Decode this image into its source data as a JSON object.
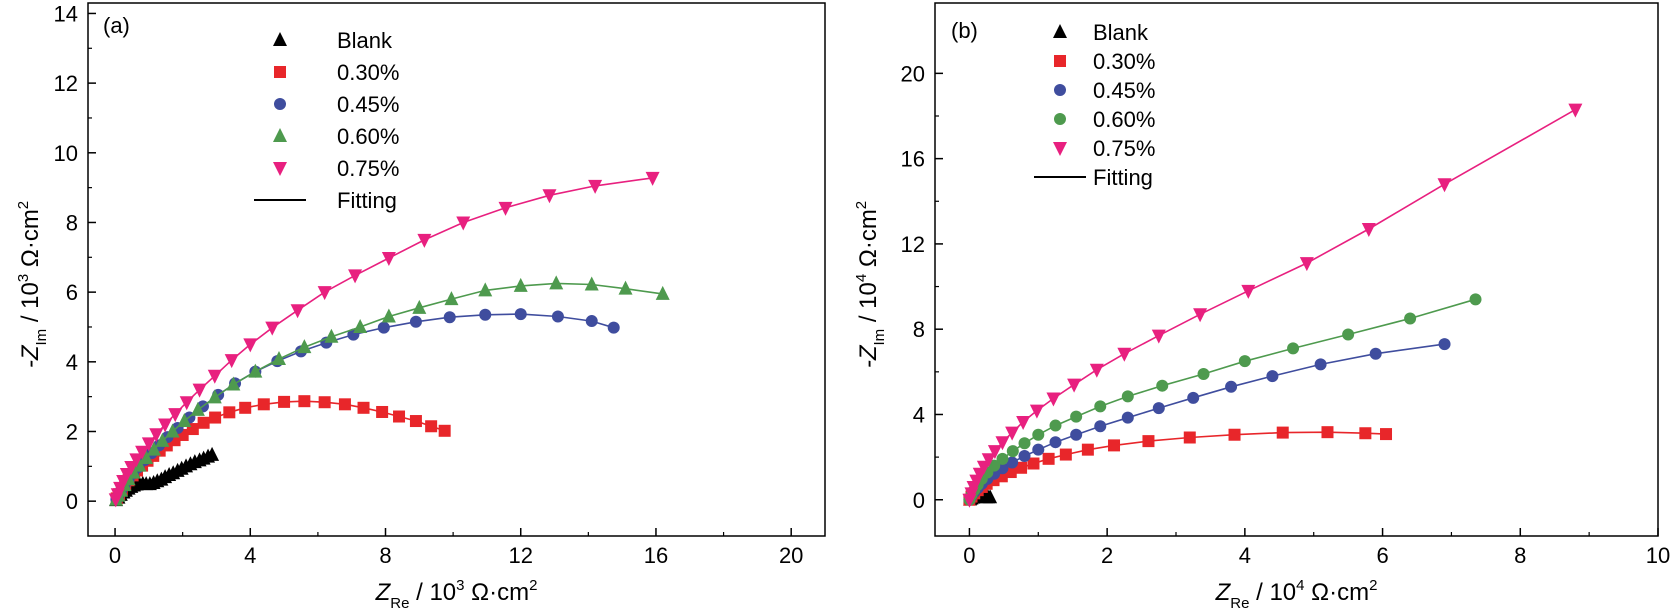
{
  "chart_data": [
    {
      "type": "scatter",
      "panel_label": "(a)",
      "xlabel": {
        "symbol": "Z",
        "subscript": "Re",
        "unit_prefix": " / 10",
        "exponent": "3",
        "unit": " Ω·cm",
        "unit_exponent": "2"
      },
      "ylabel": {
        "symbol": "-Z",
        "subscript": "Im",
        "unit_prefix": " / 10",
        "exponent": "3",
        "unit": " Ω·cm",
        "unit_exponent": "2"
      },
      "xlim": [
        -0.8,
        21
      ],
      "ylim": [
        -1.0,
        14.3
      ],
      "xticks": [
        0,
        4,
        8,
        12,
        16,
        20
      ],
      "yticks": [
        0,
        2,
        4,
        6,
        8,
        10,
        12,
        14
      ],
      "xtick_labels": [
        "0",
        "4",
        "8",
        "12",
        "16",
        "20"
      ],
      "ytick_labels": [
        "0",
        "2",
        "4",
        "6",
        "8",
        "10",
        "12",
        "14"
      ],
      "legend_position": "top-center",
      "legend_fitting_label": "Fitting",
      "series": [
        {
          "name": "Blank",
          "marker": "triangle-up",
          "color": "#000000",
          "x": [
            0.03,
            0.1,
            0.17,
            0.25,
            0.32,
            0.4,
            0.48,
            0.56,
            0.64,
            0.72,
            0.82,
            0.92,
            1.03,
            1.14,
            1.25,
            1.37,
            1.48,
            1.6,
            1.72,
            1.85,
            1.97,
            2.1,
            2.23,
            2.36,
            2.5,
            2.62,
            2.75,
            2.87
          ],
          "y": [
            0.03,
            0.1,
            0.18,
            0.25,
            0.3,
            0.36,
            0.41,
            0.45,
            0.48,
            0.5,
            0.5,
            0.49,
            0.49,
            0.52,
            0.57,
            0.62,
            0.69,
            0.75,
            0.8,
            0.87,
            0.93,
            1.0,
            1.06,
            1.12,
            1.17,
            1.22,
            1.28,
            1.33
          ]
        },
        {
          "name": "0.30%",
          "marker": "square",
          "color": "#e8262a",
          "x": [
            0.05,
            0.12,
            0.2,
            0.3,
            0.4,
            0.52,
            0.65,
            0.8,
            0.96,
            1.13,
            1.32,
            1.53,
            1.76,
            2.0,
            2.3,
            2.62,
            2.96,
            3.38,
            3.85,
            4.4,
            5.0,
            5.6,
            6.2,
            6.8,
            7.35,
            7.9,
            8.4,
            8.9,
            9.35,
            9.75
          ],
          "y": [
            0.08,
            0.2,
            0.33,
            0.47,
            0.6,
            0.74,
            0.88,
            1.02,
            1.16,
            1.3,
            1.45,
            1.6,
            1.75,
            1.9,
            2.07,
            2.25,
            2.4,
            2.55,
            2.68,
            2.78,
            2.85,
            2.87,
            2.84,
            2.78,
            2.68,
            2.56,
            2.43,
            2.3,
            2.15,
            2.02
          ]
        },
        {
          "name": "0.45%",
          "marker": "circle",
          "color": "#3f4d9e",
          "x": [
            0.04,
            0.1,
            0.18,
            0.28,
            0.4,
            0.54,
            0.7,
            0.88,
            1.08,
            1.3,
            1.55,
            1.85,
            2.2,
            2.6,
            3.05,
            3.55,
            4.15,
            4.8,
            5.5,
            6.25,
            7.05,
            7.95,
            8.9,
            9.9,
            10.95,
            12.0,
            13.1,
            14.1,
            14.75
          ],
          "y": [
            0.05,
            0.16,
            0.3,
            0.45,
            0.62,
            0.8,
            0.98,
            1.18,
            1.38,
            1.6,
            1.84,
            2.1,
            2.4,
            2.72,
            3.05,
            3.38,
            3.72,
            4.02,
            4.3,
            4.55,
            4.78,
            4.98,
            5.15,
            5.28,
            5.35,
            5.37,
            5.3,
            5.17,
            4.98
          ]
        },
        {
          "name": "0.60%",
          "marker": "triangle-up",
          "color": "#4e9a4e",
          "x": [
            0.03,
            0.1,
            0.18,
            0.28,
            0.4,
            0.55,
            0.72,
            0.92,
            1.15,
            1.4,
            1.7,
            2.05,
            2.45,
            2.95,
            3.5,
            4.15,
            4.85,
            5.6,
            6.4,
            7.25,
            8.1,
            9.0,
            9.95,
            10.95,
            12.0,
            13.05,
            14.1,
            15.1,
            16.2
          ],
          "y": [
            0.04,
            0.16,
            0.3,
            0.46,
            0.63,
            0.82,
            1.02,
            1.24,
            1.48,
            1.73,
            2.0,
            2.3,
            2.62,
            2.98,
            3.35,
            3.72,
            4.08,
            4.42,
            4.72,
            5.0,
            5.3,
            5.55,
            5.8,
            6.05,
            6.18,
            6.25,
            6.22,
            6.1,
            5.95
          ]
        },
        {
          "name": "0.75%",
          "marker": "triangle-down",
          "color": "#e8207f",
          "x": [
            0.02,
            0.08,
            0.15,
            0.24,
            0.35,
            0.48,
            0.63,
            0.8,
            1.0,
            1.22,
            1.48,
            1.78,
            2.12,
            2.5,
            2.95,
            3.45,
            4.0,
            4.65,
            5.4,
            6.2,
            7.1,
            8.1,
            9.15,
            10.3,
            11.55,
            12.85,
            14.2,
            15.9
          ],
          "y": [
            0.05,
            0.2,
            0.38,
            0.58,
            0.78,
            0.98,
            1.2,
            1.42,
            1.66,
            1.92,
            2.2,
            2.5,
            2.84,
            3.2,
            3.6,
            4.05,
            4.5,
            4.98,
            5.48,
            6.0,
            6.48,
            6.98,
            7.5,
            8.0,
            8.42,
            8.78,
            9.05,
            9.28
          ]
        }
      ]
    },
    {
      "type": "scatter",
      "panel_label": "(b)",
      "xlabel": {
        "symbol": "Z",
        "subscript": "Re",
        "unit_prefix": " / 10",
        "exponent": "4",
        "unit": " Ω·cm",
        "unit_exponent": "2"
      },
      "ylabel": {
        "symbol": "-Z",
        "subscript": "Im",
        "unit_prefix": " / 10",
        "exponent": "4",
        "unit": " Ω·cm",
        "unit_exponent": "2"
      },
      "xlim": [
        -0.5,
        10
      ],
      "ylim": [
        -1.7,
        23.3
      ],
      "xticks": [
        0,
        2,
        4,
        6,
        8,
        10
      ],
      "yticks": [
        0,
        4,
        8,
        12,
        16,
        20
      ],
      "xtick_labels": [
        "0",
        "2",
        "4",
        "6",
        "8",
        "10"
      ],
      "ytick_labels": [
        "0",
        "4",
        "8",
        "12",
        "16",
        "20"
      ],
      "legend_position": "top-left",
      "legend_fitting_label": "Fitting",
      "series": [
        {
          "name": "Blank",
          "marker": "triangle-up",
          "color": "#000000",
          "x": [
            0.01,
            0.03,
            0.06,
            0.09,
            0.12,
            0.15,
            0.18,
            0.21,
            0.24,
            0.27,
            0.3
          ],
          "y": [
            0.02,
            0.06,
            0.1,
            0.13,
            0.15,
            0.15,
            0.14,
            0.13,
            0.12,
            0.12,
            0.12
          ]
        },
        {
          "name": "0.30%",
          "marker": "square",
          "color": "#e8262a",
          "x": [
            0.0,
            0.03,
            0.07,
            0.12,
            0.18,
            0.25,
            0.35,
            0.47,
            0.6,
            0.75,
            0.93,
            1.15,
            1.4,
            1.72,
            2.1,
            2.6,
            3.2,
            3.85,
            4.55,
            5.2,
            5.75,
            6.05
          ],
          "y": [
            0.0,
            0.15,
            0.3,
            0.45,
            0.6,
            0.75,
            0.92,
            1.1,
            1.3,
            1.5,
            1.7,
            1.92,
            2.12,
            2.35,
            2.55,
            2.75,
            2.92,
            3.05,
            3.15,
            3.17,
            3.12,
            3.08
          ]
        },
        {
          "name": "0.45%",
          "marker": "circle",
          "color": "#3f4d9e",
          "x": [
            0.0,
            0.03,
            0.07,
            0.12,
            0.18,
            0.26,
            0.36,
            0.48,
            0.62,
            0.8,
            1.0,
            1.25,
            1.55,
            1.9,
            2.3,
            2.75,
            3.25,
            3.8,
            4.4,
            5.1,
            5.9,
            6.9
          ],
          "y": [
            0.0,
            0.18,
            0.36,
            0.55,
            0.75,
            0.98,
            1.22,
            1.48,
            1.75,
            2.05,
            2.35,
            2.7,
            3.05,
            3.45,
            3.85,
            4.3,
            4.78,
            5.3,
            5.8,
            6.35,
            6.85,
            7.3
          ]
        },
        {
          "name": "0.60%",
          "marker": "circle",
          "color": "#4e9a4e",
          "x": [
            0.0,
            0.03,
            0.07,
            0.12,
            0.18,
            0.26,
            0.36,
            0.48,
            0.63,
            0.8,
            1.0,
            1.25,
            1.55,
            1.9,
            2.3,
            2.8,
            3.4,
            4.0,
            4.7,
            5.5,
            6.4,
            7.35
          ],
          "y": [
            0.0,
            0.22,
            0.45,
            0.7,
            0.98,
            1.28,
            1.6,
            1.92,
            2.28,
            2.65,
            3.05,
            3.48,
            3.9,
            4.38,
            4.85,
            5.35,
            5.9,
            6.5,
            7.1,
            7.75,
            8.5,
            9.4
          ]
        },
        {
          "name": "0.75%",
          "marker": "triangle-down",
          "color": "#e8207f",
          "x": [
            0.0,
            0.03,
            0.06,
            0.1,
            0.15,
            0.21,
            0.28,
            0.37,
            0.48,
            0.62,
            0.78,
            0.98,
            1.22,
            1.52,
            1.85,
            2.25,
            2.75,
            3.35,
            4.05,
            4.9,
            5.8,
            6.9,
            8.8
          ],
          "y": [
            0.0,
            0.3,
            0.6,
            0.9,
            1.22,
            1.55,
            1.9,
            2.28,
            2.7,
            3.15,
            3.65,
            4.18,
            4.75,
            5.4,
            6.1,
            6.85,
            7.7,
            8.7,
            9.8,
            11.1,
            12.7,
            14.8,
            18.3
          ]
        }
      ]
    }
  ]
}
